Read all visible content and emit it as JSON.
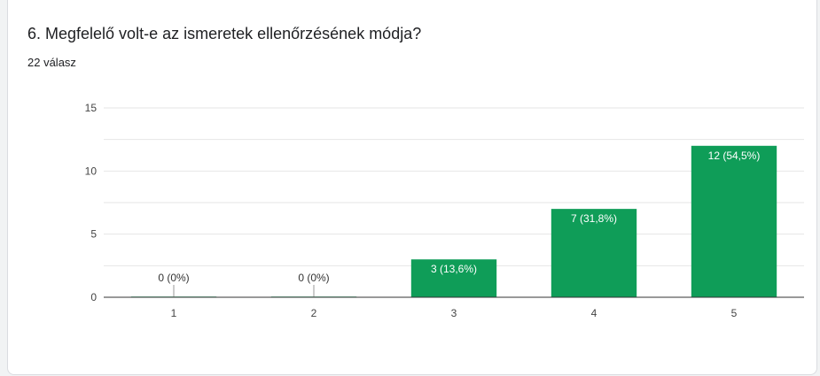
{
  "question": {
    "title": "6. Megfelelő volt-e az ismeretek ellenőrzésének módja?",
    "response_count": "22 válasz"
  },
  "colors": {
    "bar": "#0f9d58",
    "label_inside": "#ffffff",
    "label_outside": "#333333",
    "grid": "#e6e6e6",
    "axis": "#333333"
  },
  "chart_data": {
    "type": "bar",
    "categories": [
      "1",
      "2",
      "3",
      "4",
      "5"
    ],
    "values": [
      0,
      0,
      3,
      7,
      12
    ],
    "data_labels": [
      "0 (0%)",
      "0 (0%)",
      "3 (13,6%)",
      "7 (31,8%)",
      "12 (54,5%)"
    ],
    "yticks": [
      0,
      5,
      10,
      15
    ],
    "ylim": [
      0,
      15
    ],
    "grid": true,
    "legend": "none"
  }
}
